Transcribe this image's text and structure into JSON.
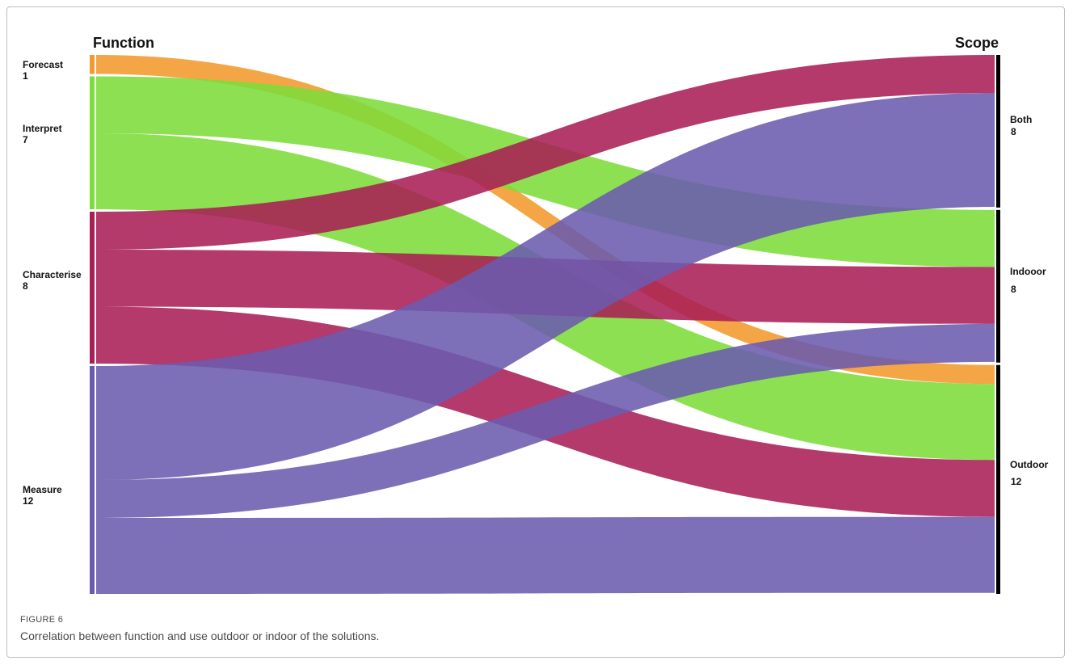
{
  "figure": {
    "label": "FIGURE 6",
    "caption": "Correlation between function and use outdoor or indoor of the solutions."
  },
  "chart_data": {
    "type": "sankey",
    "left_title": "Function",
    "right_title": "Scope",
    "left_nodes": [
      {
        "name": "Forecast",
        "value": "1",
        "count": 1,
        "color": "#F29A2E"
      },
      {
        "name": "Interpret",
        "value": "7",
        "count": 7,
        "color": "#7DDC3A"
      },
      {
        "name": "Characterise",
        "value": "8",
        "count": 8,
        "color": "#A91F55"
      },
      {
        "name": "Measure",
        "value": "12",
        "count": 12,
        "color": "#6B5BAE"
      }
    ],
    "right_nodes": [
      {
        "name": "Both",
        "value": "8",
        "count": 8,
        "color": "#000000"
      },
      {
        "name": "Indooor",
        "value": "8",
        "count": 8,
        "color": "#000000"
      },
      {
        "name": "Outdoor",
        "value": "12",
        "count": 12,
        "color": "#000000"
      }
    ],
    "links": [
      {
        "source": "Forecast",
        "target": "Outdoor",
        "value": 1
      },
      {
        "source": "Interpret",
        "target": "Indooor",
        "value": 3
      },
      {
        "source": "Interpret",
        "target": "Outdoor",
        "value": 4
      },
      {
        "source": "Characterise",
        "target": "Both",
        "value": 2
      },
      {
        "source": "Characterise",
        "target": "Indooor",
        "value": 3
      },
      {
        "source": "Characterise",
        "target": "Outdoor",
        "value": 3
      },
      {
        "source": "Measure",
        "target": "Both",
        "value": 6
      },
      {
        "source": "Measure",
        "target": "Indooor",
        "value": 2
      },
      {
        "source": "Measure",
        "target": "Outdoor",
        "value": 4
      }
    ]
  }
}
